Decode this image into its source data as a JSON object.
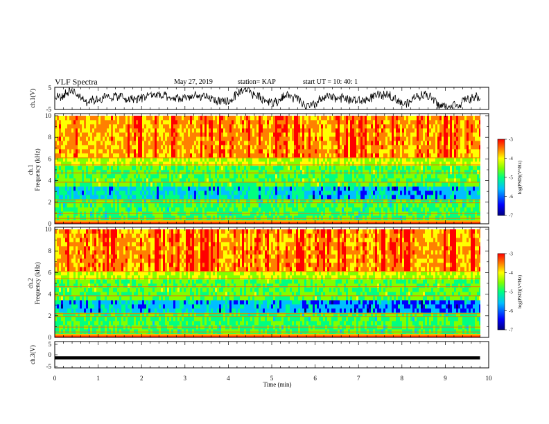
{
  "header": {
    "title": "VLF Spectra",
    "date": "May 27, 2019",
    "station": "station= KAP",
    "start": "start  UT  =    10: 40: 1"
  },
  "chart_data": [
    {
      "type": "line",
      "panel": "ch1-waveform",
      "ylabel": "ch.1(V)",
      "ylim": [
        -5,
        5
      ],
      "yticks": [
        "5",
        "-5"
      ],
      "xlim": [
        0,
        10
      ]
    },
    {
      "type": "heatmap",
      "panel": "ch1-spectrogram",
      "ylabel": "ch.1\nFrequency (kHz)",
      "ylim": [
        0,
        10
      ],
      "yticks": [
        "0",
        "2",
        "4",
        "6",
        "8",
        "10"
      ],
      "xlim": [
        0,
        10
      ],
      "colorbar": {
        "label": "log(PSD)(V²/Hz)",
        "range": [
          -7,
          -3
        ],
        "ticks": [
          "-3",
          "-4",
          "-5",
          "-6",
          "-7"
        ]
      }
    },
    {
      "type": "heatmap",
      "panel": "ch2-spectrogram",
      "ylabel": "ch.2\nFrequency (kHz)",
      "ylim": [
        0,
        10
      ],
      "yticks": [
        "0",
        "2",
        "4",
        "6",
        "8",
        "10"
      ],
      "xlim": [
        0,
        10
      ],
      "colorbar": {
        "label": "log(PSD)(V²/Hz)",
        "range": [
          -7,
          -3
        ],
        "ticks": [
          "-3",
          "-4",
          "-5",
          "-6",
          "-7"
        ]
      }
    },
    {
      "type": "line",
      "panel": "ch3-waveform",
      "ylabel": "ch.3(V)",
      "ylim": [
        -5,
        5
      ],
      "yticks": [
        "5",
        "0",
        "-5"
      ],
      "xlim": [
        0,
        10
      ],
      "xlabel": "Time (min)",
      "xticks": [
        "0",
        "1",
        "2",
        "3",
        "4",
        "5",
        "6",
        "7",
        "8",
        "9",
        "10"
      ],
      "series": [
        {
          "x": [
            0,
            9.8
          ],
          "y": [
            -1.5,
            -1.5
          ]
        }
      ]
    }
  ],
  "colors": {
    "colormap": [
      "#00007f",
      "#0000ff",
      "#00bfff",
      "#00ff80",
      "#80ff00",
      "#ffff00",
      "#ff8000",
      "#ff0000"
    ]
  }
}
